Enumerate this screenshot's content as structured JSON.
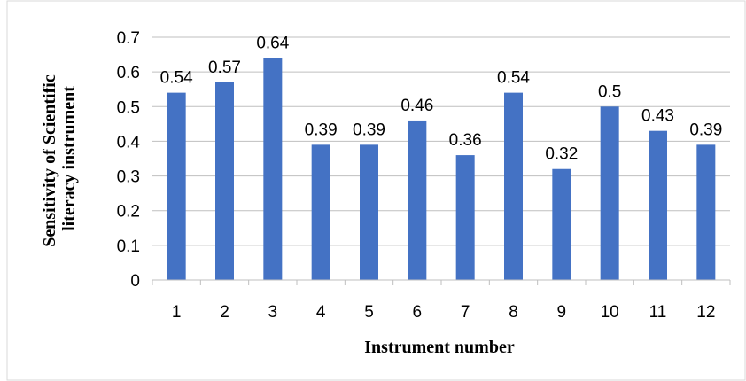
{
  "chart_data": {
    "type": "bar",
    "title": "",
    "xlabel": "Instrument number",
    "ylabel_lines": [
      "Sensitivity of Scientific",
      "literacy instrument"
    ],
    "categories": [
      "1",
      "2",
      "3",
      "4",
      "5",
      "6",
      "7",
      "8",
      "9",
      "10",
      "11",
      "12"
    ],
    "values": [
      0.54,
      0.57,
      0.64,
      0.39,
      0.39,
      0.46,
      0.36,
      0.54,
      0.32,
      0.5,
      0.43,
      0.39
    ],
    "value_labels": [
      "0.54",
      "0.57",
      "0.64",
      "0.39",
      "0.39",
      "0.46",
      "0.36",
      "0.54",
      "0.32",
      "0.5",
      "0.43",
      "0.39"
    ],
    "ylim": [
      0,
      0.7
    ],
    "yticks": [
      "0",
      "0.1",
      "0.2",
      "0.3",
      "0.4",
      "0.5",
      "0.6",
      "0.7"
    ],
    "grid": true,
    "legend": "none",
    "colors": {
      "bar": "#4472C4",
      "grid": "#BFBFBF",
      "axis": "#BFBFBF",
      "border": "#D9D9D9"
    }
  }
}
